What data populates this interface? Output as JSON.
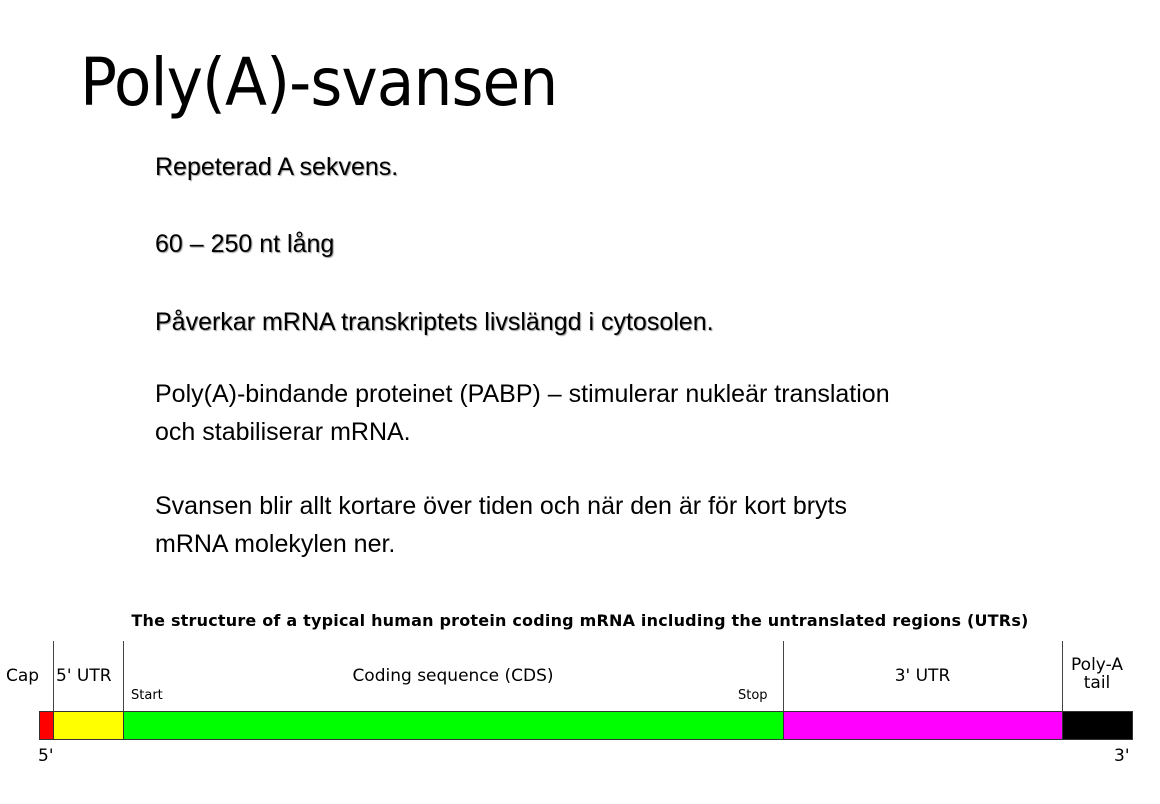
{
  "slide": {
    "title": "Poly(A)-svansen",
    "lines": [
      "Repeterad A sekvens.",
      "60 – 250 nt lång",
      "Påverkar mRNA transkriptets livslängd i cytosolen.",
      "Poly(A)-bindande proteinet (PABP) – stimulerar nukleär translation",
      "och stabiliserar mRNA.",
      "Svansen blir allt kortare över tiden och när den är för kort bryts",
      "mRNA molekylen ner."
    ]
  },
  "diagram": {
    "title": "The structure of a typical human protein coding mRNA including the untranslated regions (UTRs)",
    "regions": [
      {
        "label": "Cap",
        "color": "#ff0000"
      },
      {
        "label": "5' UTR",
        "color": "#ffff00"
      },
      {
        "label": "Coding sequence (CDS)",
        "color": "#00ff00"
      },
      {
        "label": "3' UTR",
        "color": "#ff00ff"
      },
      {
        "label_line1": "Poly-A",
        "label_line2": "tail",
        "color": "#000000"
      }
    ],
    "start_label": "Start",
    "stop_label": "Stop",
    "five_prime": "5'",
    "three_prime": "3'"
  }
}
